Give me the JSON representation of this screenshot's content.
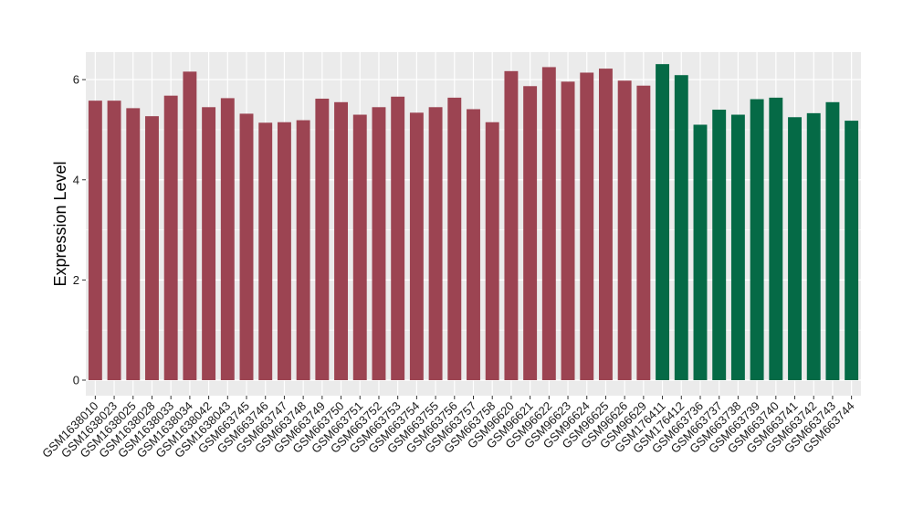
{
  "chart_data": {
    "type": "bar",
    "title": "",
    "xlabel": "",
    "ylabel": "Expression Level",
    "ylim": [
      0,
      6.55
    ],
    "yticks": [
      0,
      2,
      4,
      6
    ],
    "grid": true,
    "legend": "none",
    "colors": {
      "group_a": "#9c4452",
      "group_b": "#056a46",
      "panel": "#ebebeb",
      "grid": "#ffffff"
    },
    "categories": [
      "GSM1638010",
      "GSM1638023",
      "GSM1638025",
      "GSM1638028",
      "GSM1638033",
      "GSM1638034",
      "GSM1638042",
      "GSM1638043",
      "GSM663745",
      "GSM663746",
      "GSM663747",
      "GSM663748",
      "GSM663749",
      "GSM663750",
      "GSM663751",
      "GSM663752",
      "GSM663753",
      "GSM663754",
      "GSM663755",
      "GSM663756",
      "GSM663757",
      "GSM663758",
      "GSM96620",
      "GSM96621",
      "GSM96622",
      "GSM96623",
      "GSM96624",
      "GSM96625",
      "GSM96626",
      "GSM96629",
      "GSM176411",
      "GSM176412",
      "GSM663736",
      "GSM663737",
      "GSM663738",
      "GSM663739",
      "GSM663740",
      "GSM663741",
      "GSM663742",
      "GSM663743",
      "GSM663744"
    ],
    "values": [
      5.58,
      5.58,
      5.43,
      5.27,
      5.68,
      6.16,
      5.45,
      5.63,
      5.32,
      5.14,
      5.15,
      5.19,
      5.62,
      5.55,
      5.3,
      5.45,
      5.66,
      5.34,
      5.45,
      5.64,
      5.41,
      5.15,
      6.17,
      5.87,
      6.25,
      5.96,
      6.14,
      6.22,
      5.98,
      5.88,
      6.31,
      6.09,
      5.1,
      5.4,
      5.3,
      5.61,
      5.64,
      5.25,
      5.33,
      5.55,
      5.18
    ],
    "groups": [
      "a",
      "a",
      "a",
      "a",
      "a",
      "a",
      "a",
      "a",
      "a",
      "a",
      "a",
      "a",
      "a",
      "a",
      "a",
      "a",
      "a",
      "a",
      "a",
      "a",
      "a",
      "a",
      "a",
      "a",
      "a",
      "a",
      "a",
      "a",
      "a",
      "a",
      "b",
      "b",
      "b",
      "b",
      "b",
      "b",
      "b",
      "b",
      "b",
      "b",
      "b"
    ]
  }
}
